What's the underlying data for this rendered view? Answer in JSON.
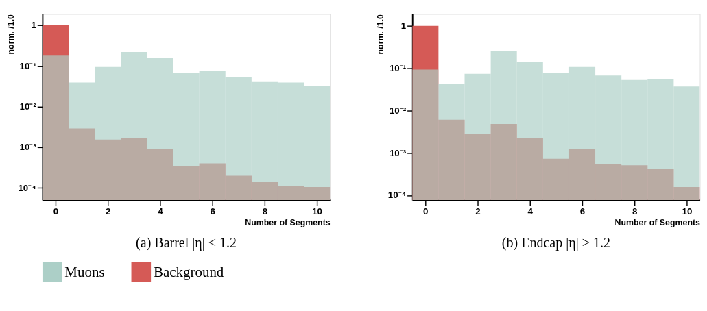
{
  "chart_data": [
    {
      "type": "histogram",
      "title": "(a) Barrel |η| < 1.2",
      "xlabel": "Number of Segments",
      "ylabel": "norm. /1.0",
      "log": true,
      "legend": "bottom",
      "grid": false,
      "bins": [
        -0.5,
        0.5,
        1.5,
        2.5,
        3.5,
        4.5,
        5.5,
        6.5,
        7.5,
        8.5,
        9.5,
        10.5
      ],
      "xlim": [
        -0.5,
        10.5
      ],
      "xticks": [
        0,
        2,
        4,
        6,
        8,
        10
      ],
      "ylim": [
        5e-05,
        1.9
      ],
      "yticks": [
        {
          "value": 0.0001,
          "label": "10⁻⁴"
        },
        {
          "value": 0.001,
          "label": "10⁻³"
        },
        {
          "value": 0.01,
          "label": "10⁻²"
        },
        {
          "value": 0.1,
          "label": "10⁻¹"
        },
        1
      ],
      "series": [
        {
          "name": "Muons",
          "color": "#accfc7",
          "values": [
            0.18,
            0.039,
            0.095,
            0.22,
            0.16,
            0.068,
            0.076,
            0.054,
            0.042,
            0.039,
            0.032
          ]
        },
        {
          "name": "Background",
          "color": "#d55a56",
          "values": [
            1.0,
            0.0029,
            0.00155,
            0.00166,
            0.00091,
            0.00034,
            0.0004,
            0.0002,
            0.000139,
            0.000113,
            0.000105
          ]
        }
      ]
    },
    {
      "type": "histogram",
      "title": "(b) Endcap |η| > 1.2",
      "xlabel": "Number of Segments",
      "ylabel": "norm. /1.0",
      "log": true,
      "legend": false,
      "grid": false,
      "bins": [
        -0.5,
        0.5,
        1.5,
        2.5,
        3.5,
        4.5,
        5.5,
        6.5,
        7.5,
        8.5,
        9.5,
        10.5
      ],
      "xlim": [
        -0.5,
        10.5
      ],
      "xticks": [
        0,
        2,
        4,
        6,
        8,
        10
      ],
      "ylim": [
        7.7e-05,
        1.9
      ],
      "yticks": [
        {
          "value": 0.0001,
          "label": "10⁻⁴"
        },
        {
          "value": 0.001,
          "label": "10⁻³"
        },
        {
          "value": 0.01,
          "label": "10⁻²"
        },
        {
          "value": 0.1,
          "label": "10⁻¹"
        },
        1
      ],
      "series": [
        {
          "name": "Muons",
          "color": "#accfc7",
          "values": [
            0.093,
            0.042,
            0.074,
            0.26,
            0.142,
            0.078,
            0.107,
            0.067,
            0.053,
            0.055,
            0.037
          ]
        },
        {
          "name": "Background",
          "color": "#d55a56",
          "values": [
            1.0,
            0.0061,
            0.0028,
            0.0048,
            0.0022,
            0.00073,
            0.00123,
            0.00054,
            0.00051,
            0.00043,
            0.000157
          ]
        }
      ]
    }
  ]
}
